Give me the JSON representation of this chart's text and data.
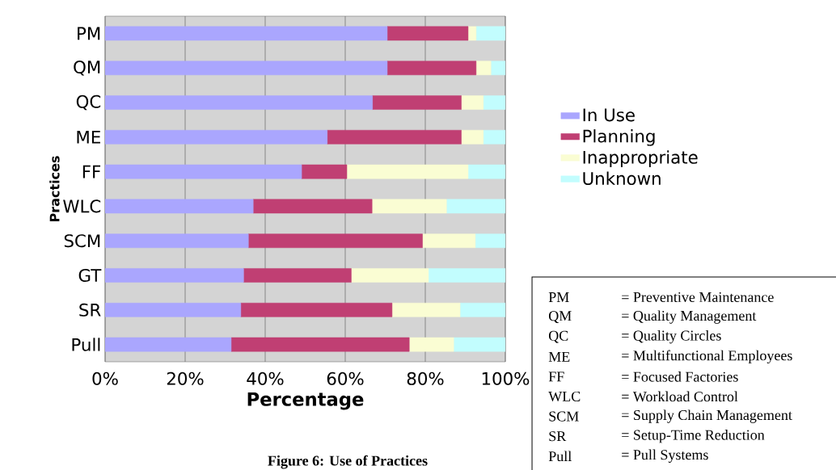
{
  "chart_data": {
    "type": "bar",
    "orientation": "horizontal",
    "stacked": true,
    "xlabel": "Percentage",
    "ylabel": "Practices",
    "categories": [
      "PM",
      "QM",
      "QC",
      "ME",
      "FF",
      "WLC",
      "SCM",
      "GT",
      "SR",
      "Pull"
    ],
    "series": [
      {
        "name": "In Use",
        "color": "#aaa6fe",
        "values": [
          70.5,
          70.5,
          66.8,
          55.5,
          49.1,
          37.0,
          35.8,
          34.6,
          33.9,
          31.5
        ]
      },
      {
        "name": "Planning",
        "color": "#c03f73",
        "values": [
          20.2,
          22.2,
          22.2,
          33.5,
          11.3,
          29.7,
          43.5,
          26.9,
          37.8,
          44.5
        ]
      },
      {
        "name": "Inappropriate",
        "color": "#fafdd3",
        "values": [
          2.0,
          3.7,
          5.5,
          5.5,
          30.3,
          18.6,
          13.2,
          19.3,
          17.0,
          11.1
        ]
      },
      {
        "name": "Unknown",
        "color": "#c2fdfe",
        "values": [
          7.3,
          3.6,
          5.5,
          5.5,
          9.3,
          14.7,
          7.5,
          19.2,
          11.3,
          12.9
        ]
      }
    ],
    "xlim": [
      0,
      100
    ],
    "xticks": [
      {
        "value": 0,
        "label": "0%"
      },
      {
        "value": 20,
        "label": "20%"
      },
      {
        "value": 40,
        "label": "40%"
      },
      {
        "value": 60,
        "label": "60%"
      },
      {
        "value": 80,
        "label": "80%"
      },
      {
        "value": 100,
        "label": "100%"
      }
    ],
    "grid": "x",
    "legend": "right",
    "annotations": [
      "PM",
      "= Preventive Maintenance",
      "QM",
      "= Quality Management",
      "QC",
      "= Quality Circles",
      "ME",
      "= Multifunctional Employees",
      "FF",
      "= Focused Factories",
      "WLC",
      "= Workload Control",
      "SCM",
      "= Supply Chain Management",
      "SR",
      "= Setup-Time Reduction",
      "Pull",
      "= Pull Systems",
      "Figure 6: Use of Practices"
    ]
  }
}
